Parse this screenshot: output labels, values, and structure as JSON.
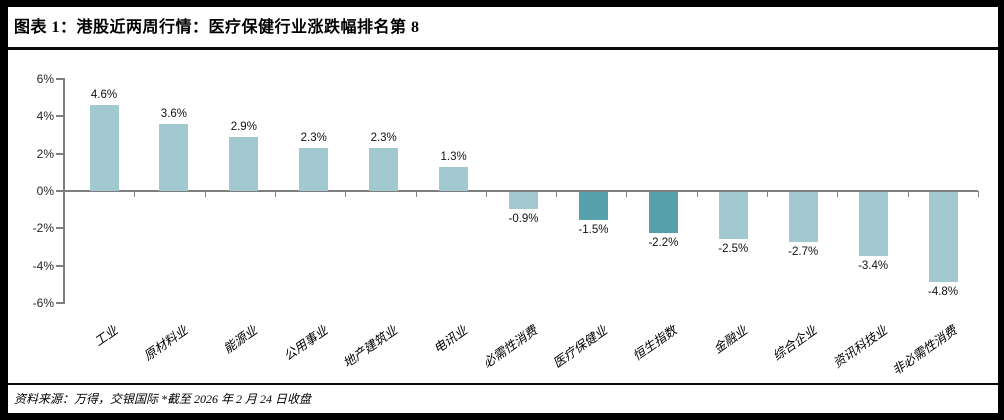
{
  "header": {
    "title": "图表 1：港股近两周行情：医疗保健行业涨跌幅排名第 8"
  },
  "footer": {
    "source": "资料来源：万得，交银国际  *截至 2026 年 2 月 24 日收盘"
  },
  "chart_data": {
    "type": "bar",
    "title": "图表 1：港股近两周行情：医疗保健行业涨跌幅排名第 8",
    "categories": [
      "工业",
      "原材料业",
      "能源业",
      "公用事业",
      "地产建筑业",
      "电讯业",
      "必需性消费",
      "医疗保健业",
      "恒生指数",
      "金融业",
      "综合企业",
      "资讯科技业",
      "非必需性消费"
    ],
    "values": [
      4.6,
      3.6,
      2.9,
      2.3,
      2.3,
      1.3,
      -0.9,
      -1.5,
      -2.2,
      -2.5,
      -2.7,
      -3.4,
      -4.8
    ],
    "value_labels": [
      "4.6%",
      "3.6%",
      "2.9%",
      "2.3%",
      "2.3%",
      "1.3%",
      "-0.9%",
      "-1.5%",
      "-2.2%",
      "-2.5%",
      "-2.7%",
      "-3.4%",
      "-4.8%"
    ],
    "y_ticks": [
      "6%",
      "4%",
      "2%",
      "0%",
      "-2%",
      "-4%",
      "-6%"
    ],
    "y_tick_values": [
      6,
      4,
      2,
      0,
      -2,
      -4,
      -6
    ],
    "ylim": [
      -6,
      6
    ],
    "xlabel": "",
    "ylabel": "",
    "grid": false,
    "legend": null,
    "highlight_indexes": [
      7,
      8
    ],
    "colors": {
      "bar": "#a2c8d0",
      "highlight": "#57a1ac",
      "axis": "#7f7f7f"
    }
  }
}
